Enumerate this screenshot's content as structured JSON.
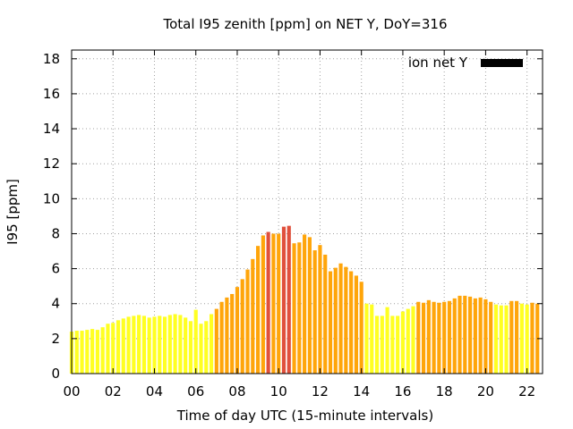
{
  "chart_data": {
    "type": "bar",
    "title": "Total I95 zenith [ppm] on NET Y, DoY=316",
    "xlabel": "Time of day UTC (15-minute intervals)",
    "ylabel": "I95 [ppm]",
    "xlim": [
      0,
      22.75
    ],
    "ylim": [
      0,
      18.5
    ],
    "x_ticks": [
      "00",
      "02",
      "04",
      "06",
      "08",
      "10",
      "12",
      "14",
      "16",
      "18",
      "20",
      "22"
    ],
    "y_ticks": [
      "0",
      "2",
      "4",
      "6",
      "8",
      "10",
      "12",
      "14",
      "16",
      "18"
    ],
    "grid": true,
    "legend": {
      "label": "ion net Y",
      "color": "#000000",
      "position": "top-right"
    },
    "interval_hours": 0.25,
    "colors": {
      "yellow": "#ffff22",
      "orange": "#ffa50a",
      "red": "#e0503c"
    },
    "values": [
      2.4,
      2.45,
      2.45,
      2.5,
      2.55,
      2.5,
      2.65,
      2.85,
      2.9,
      3.05,
      3.15,
      3.25,
      3.3,
      3.35,
      3.3,
      3.2,
      3.25,
      3.3,
      3.25,
      3.35,
      3.4,
      3.35,
      3.2,
      3.0,
      3.65,
      2.85,
      3.0,
      3.4,
      3.7,
      4.1,
      4.35,
      4.55,
      4.95,
      5.4,
      5.95,
      6.55,
      7.3,
      7.9,
      8.1,
      8.0,
      8.0,
      8.4,
      8.45,
      7.45,
      7.5,
      7.95,
      7.8,
      7.05,
      7.35,
      6.8,
      5.85,
      6.05,
      6.3,
      6.1,
      5.85,
      5.6,
      5.25,
      4.0,
      3.95,
      3.3,
      3.3,
      3.8,
      3.3,
      3.3,
      3.55,
      3.7,
      3.85,
      4.1,
      4.05,
      4.2,
      4.1,
      4.05,
      4.1,
      4.15,
      4.3,
      4.45,
      4.45,
      4.4,
      4.3,
      4.35,
      4.25,
      4.1,
      3.95,
      3.9,
      3.9,
      4.15,
      4.15,
      4.0,
      3.95,
      4.05,
      4.0
    ],
    "bar_colors": [
      "yellow",
      "yellow",
      "yellow",
      "yellow",
      "yellow",
      "yellow",
      "yellow",
      "yellow",
      "yellow",
      "yellow",
      "yellow",
      "yellow",
      "yellow",
      "yellow",
      "yellow",
      "yellow",
      "yellow",
      "yellow",
      "yellow",
      "yellow",
      "yellow",
      "yellow",
      "yellow",
      "yellow",
      "yellow",
      "yellow",
      "yellow",
      "yellow",
      "orange",
      "orange",
      "orange",
      "orange",
      "orange",
      "orange",
      "orange",
      "orange",
      "orange",
      "orange",
      "red",
      "orange",
      "orange",
      "red",
      "red",
      "orange",
      "orange",
      "orange",
      "orange",
      "orange",
      "orange",
      "orange",
      "orange",
      "orange",
      "orange",
      "orange",
      "orange",
      "orange",
      "orange",
      "yellow",
      "yellow",
      "yellow",
      "yellow",
      "yellow",
      "yellow",
      "yellow",
      "yellow",
      "yellow",
      "yellow",
      "orange",
      "orange",
      "orange",
      "orange",
      "orange",
      "orange",
      "orange",
      "orange",
      "orange",
      "orange",
      "orange",
      "orange",
      "orange",
      "orange",
      "orange",
      "yellow",
      "yellow",
      "yellow",
      "orange",
      "orange",
      "yellow",
      "yellow",
      "orange",
      "orange"
    ]
  }
}
